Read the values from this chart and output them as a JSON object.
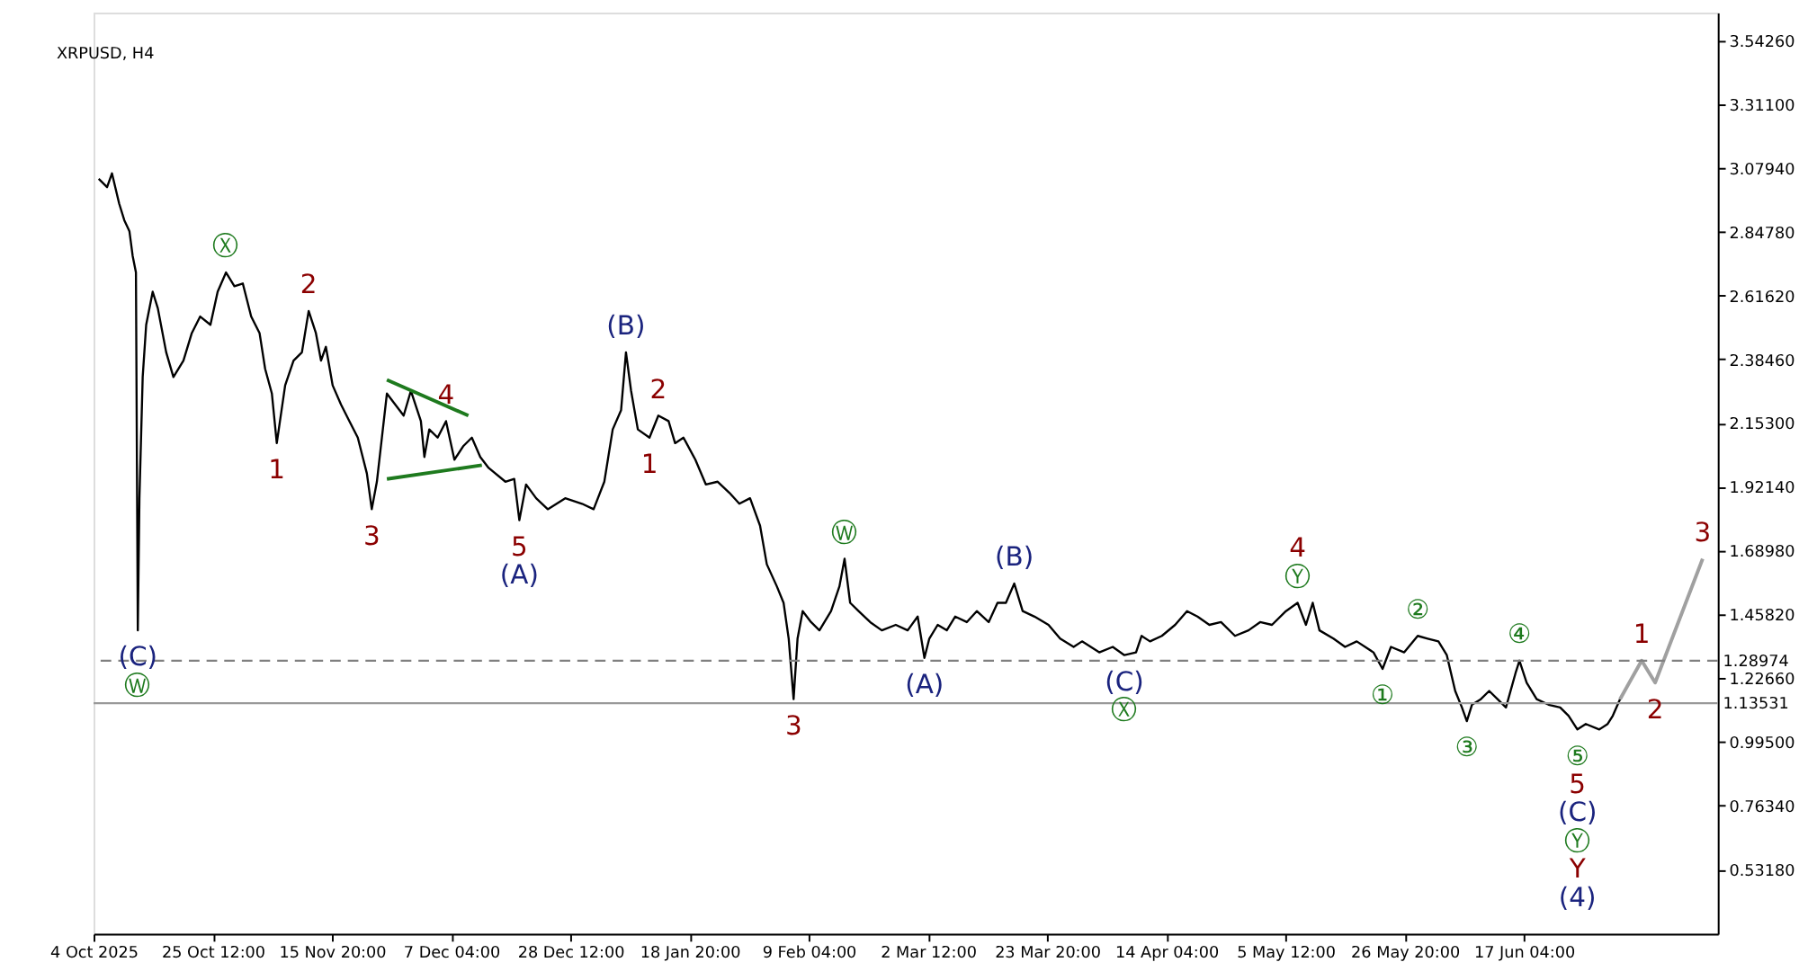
{
  "chart_data": {
    "type": "line",
    "title": "XRPUSD, H4",
    "xlim": [
      "2025-10-04T04:00",
      "2026-07-21T21:00"
    ],
    "ylim": [
      0.298,
      3.644
    ],
    "xticks": [
      {
        "value": "2025-10-04T04:00",
        "label": "4 Oct 2025"
      },
      {
        "value": "2025-10-25T12:00",
        "label": "25 Oct 12:00"
      },
      {
        "value": "2025-11-15T20:00",
        "label": "15 Nov 20:00"
      },
      {
        "value": "2025-12-07T04:00",
        "label": "7 Dec 04:00"
      },
      {
        "value": "2025-12-28T12:00",
        "label": "28 Dec 12:00"
      },
      {
        "value": "2026-01-18T20:00",
        "label": "18 Jan 20:00"
      },
      {
        "value": "2026-02-09T04:00",
        "label": "9 Feb 04:00"
      },
      {
        "value": "2026-03-02T12:00",
        "label": "2 Mar 12:00"
      },
      {
        "value": "2026-03-23T20:00",
        "label": "23 Mar 20:00"
      },
      {
        "value": "2026-04-14T04:00",
        "label": "14 Apr 04:00"
      },
      {
        "value": "2026-05-05T12:00",
        "label": "5 May 12:00"
      },
      {
        "value": "2026-05-26T20:00",
        "label": "26 May 20:00"
      },
      {
        "value": "2026-06-17T04:00",
        "label": "17 Jun 04:00"
      }
    ],
    "yticks": [
      {
        "value": 3.5426,
        "label": "3.54260"
      },
      {
        "value": 3.311,
        "label": "3.31100"
      },
      {
        "value": 3.0794,
        "label": "3.07940"
      },
      {
        "value": 2.8478,
        "label": "2.84780"
      },
      {
        "value": 2.6162,
        "label": "2.61620"
      },
      {
        "value": 2.3846,
        "label": "2.38460"
      },
      {
        "value": 2.153,
        "label": "2.15300"
      },
      {
        "value": 1.9214,
        "label": "1.92140"
      },
      {
        "value": 1.6898,
        "label": "1.68980"
      },
      {
        "value": 1.4582,
        "label": "1.45820"
      },
      {
        "value": 1.2266,
        "label": "1.22660"
      },
      {
        "value": 0.995,
        "label": "0.99500"
      },
      {
        "value": 0.7634,
        "label": "0.76340"
      },
      {
        "value": 0.5318,
        "label": "0.53180"
      }
    ],
    "grid": false,
    "marker": "none",
    "line_style": "solid",
    "series": [
      {
        "color": "#000000",
        "x": [
          "2025-10-05T02:00",
          "2025-10-06T14:00",
          "2025-10-07T11:00",
          "2025-10-08T18:00",
          "2025-10-09T16:00",
          "2025-10-10T14:00",
          "2025-10-11T04:00",
          "2025-10-11T18:00",
          "2025-10-12T02:00",
          "2025-10-12T09:00",
          "2025-10-12T23:00",
          "2025-10-13T14:00",
          "2025-10-14T18:00",
          "2025-10-15T16:00",
          "2025-10-17T04:00",
          "2025-10-18T11:00",
          "2025-10-20T06:00",
          "2025-10-21T18:00",
          "2025-10-23T06:00",
          "2025-10-25T02:00",
          "2025-10-26T09:00",
          "2025-10-27T21:00",
          "2025-10-29T09:00",
          "2025-10-30T21:00",
          "2025-11-01T09:00",
          "2025-11-02T21:00",
          "2025-11-03T21:00",
          "2025-11-05T02:00",
          "2025-11-05T23:00",
          "2025-11-07T11:00",
          "2025-11-08T23:00",
          "2025-11-10T11:00",
          "2025-11-11T16:00",
          "2025-11-12T23:00",
          "2025-11-13T21:00",
          "2025-11-14T18:00",
          "2025-11-15T23:00",
          "2025-11-17T11:00",
          "2025-11-18T23:00",
          "2025-11-20T11:00",
          "2025-11-22T02:00",
          "2025-11-22T23:00",
          "2025-11-23T21:00",
          "2025-11-25T16:00",
          "2025-11-27T04:00",
          "2025-11-28T16:00",
          "2025-11-29T23:00",
          "2025-12-01T18:00",
          "2025-12-02T09:00",
          "2025-12-03T06:00",
          "2025-12-04T18:00",
          "2025-12-06T06:00",
          "2025-12-07T18:00",
          "2025-12-09T09:00",
          "2025-12-10T21:00",
          "2025-12-12T09:00",
          "2025-12-13T21:00",
          "2025-12-16T21:00",
          "2025-12-18T11:00",
          "2025-12-19T09:00",
          "2025-12-20T14:00",
          "2025-12-22T09:00",
          "2025-12-24T11:00",
          "2025-12-27T14:00",
          "2025-12-30T14:00",
          "2026-01-01T16:00",
          "2026-01-03T14:00",
          "2026-01-05T02:00",
          "2026-01-06T14:00",
          "2026-01-07T11:00",
          "2026-01-08T09:00",
          "2026-01-09T14:00",
          "2026-01-11T16:00",
          "2026-01-13T06:00",
          "2026-01-15T02:00",
          "2026-01-16T06:00",
          "2026-01-17T18:00",
          "2026-01-19T21:00",
          "2026-01-21T18:00",
          "2026-01-23T21:00",
          "2026-01-25T23:00",
          "2026-01-27T18:00",
          "2026-01-29T16:00",
          "2026-01-31T11:00",
          "2026-02-01T16:00",
          "2026-02-03T11:00",
          "2026-02-04T16:00",
          "2026-02-05T14:00",
          "2026-02-06T11:00",
          "2026-02-07T04:00",
          "2026-02-08T02:00",
          "2026-02-09T14:00",
          "2026-02-11T02:00",
          "2026-02-13T04:00",
          "2026-02-14T16:00",
          "2026-02-15T14:00",
          "2026-02-16T14:00",
          "2026-02-18T02:00",
          "2026-02-20T04:00",
          "2026-02-22T06:00",
          "2026-02-24T18:00",
          "2026-02-26T21:00",
          "2026-02-28T16:00",
          "2026-03-01T21:00",
          "2026-03-02T18:00",
          "2026-03-04T06:00",
          "2026-03-05T21:00",
          "2026-03-07T09:00",
          "2026-03-09T11:00",
          "2026-03-11T06:00",
          "2026-03-13T09:00",
          "2026-03-14T23:00",
          "2026-03-16T11:00",
          "2026-03-17T23:00",
          "2026-03-19T11:00",
          "2026-03-21T14:00",
          "2026-03-24T02:00",
          "2026-03-26T04:00",
          "2026-03-28T14:00",
          "2026-03-30T02:00",
          "2026-04-02T04:00",
          "2026-04-04T14:00",
          "2026-04-06T16:00",
          "2026-04-08T18:00",
          "2026-04-09T18:00",
          "2026-04-11T06:00",
          "2026-04-13T09:00",
          "2026-04-15T18:00",
          "2026-04-17T21:00",
          "2026-04-19T18:00",
          "2026-04-21T21:00",
          "2026-04-23T23:00",
          "2026-04-26T11:00",
          "2026-04-28T21:00",
          "2026-04-30T23:00",
          "2026-05-03T02:00",
          "2026-05-05T14:00",
          "2026-05-07T16:00",
          "2026-05-09T04:00",
          "2026-05-10T09:00",
          "2026-05-11T14:00",
          "2026-05-14T02:00",
          "2026-05-16T04:00",
          "2026-05-18T06:00",
          "2026-05-21T06:00",
          "2026-05-22T21:00",
          "2026-05-24T09:00",
          "2026-05-26T18:00",
          "2026-05-29T04:00",
          "2026-05-30T23:00",
          "2026-06-01T21:00",
          "2026-06-03T09:00",
          "2026-06-04T21:00",
          "2026-06-06T02:00",
          "2026-06-06T23:00",
          "2026-06-07T21:00",
          "2026-06-09T11:00",
          "2026-06-10T23:00",
          "2026-06-12T11:00",
          "2026-06-13T23:00",
          "2026-06-15T18:00",
          "2026-06-16T09:00",
          "2026-06-17T16:00",
          "2026-06-19T11:00",
          "2026-06-21T14:00",
          "2026-06-23T16:00",
          "2026-06-25T04:00",
          "2026-06-26T18:00",
          "2026-06-28T06:00",
          "2026-06-30T16:00",
          "2026-07-02T04:00",
          "2026-07-03T02:00",
          "2026-07-04T09:00"
        ],
        "values": [
          3.04,
          3.01,
          3.06,
          2.95,
          2.89,
          2.85,
          2.76,
          2.7,
          1.4,
          1.88,
          2.32,
          2.51,
          2.63,
          2.57,
          2.41,
          2.32,
          2.38,
          2.48,
          2.54,
          2.51,
          2.63,
          2.7,
          2.65,
          2.66,
          2.54,
          2.48,
          2.35,
          2.26,
          2.08,
          2.29,
          2.38,
          2.41,
          2.56,
          2.48,
          2.38,
          2.43,
          2.29,
          2.22,
          2.16,
          2.1,
          1.97,
          1.84,
          1.94,
          2.26,
          2.22,
          2.18,
          2.27,
          2.16,
          2.03,
          2.13,
          2.1,
          2.16,
          2.02,
          2.07,
          2.1,
          2.03,
          1.99,
          1.94,
          1.95,
          1.8,
          1.93,
          1.88,
          1.84,
          1.88,
          1.86,
          1.84,
          1.94,
          2.13,
          2.2,
          2.41,
          2.27,
          2.13,
          2.1,
          2.18,
          2.16,
          2.08,
          2.1,
          2.02,
          1.93,
          1.94,
          1.9,
          1.86,
          1.88,
          1.78,
          1.64,
          1.56,
          1.5,
          1.37,
          1.15,
          1.37,
          1.47,
          1.43,
          1.4,
          1.47,
          1.56,
          1.66,
          1.5,
          1.47,
          1.43,
          1.4,
          1.42,
          1.4,
          1.45,
          1.3,
          1.37,
          1.42,
          1.4,
          1.45,
          1.43,
          1.47,
          1.43,
          1.5,
          1.5,
          1.57,
          1.47,
          1.45,
          1.42,
          1.37,
          1.34,
          1.36,
          1.32,
          1.34,
          1.31,
          1.32,
          1.38,
          1.36,
          1.38,
          1.42,
          1.47,
          1.45,
          1.42,
          1.43,
          1.38,
          1.4,
          1.43,
          1.42,
          1.47,
          1.5,
          1.42,
          1.5,
          1.4,
          1.37,
          1.34,
          1.36,
          1.32,
          1.26,
          1.34,
          1.32,
          1.38,
          1.37,
          1.36,
          1.31,
          1.18,
          1.12,
          1.07,
          1.13,
          1.15,
          1.18,
          1.15,
          1.12,
          1.25,
          1.29,
          1.21,
          1.15,
          1.13,
          1.12,
          1.09,
          1.04,
          1.06,
          1.04,
          1.06,
          1.09,
          1.15
        ]
      },
      {
        "color": "#a0a0a0",
        "x": [
          "2026-07-04T09:00",
          "2026-07-08T06:00",
          "2026-07-10T16:00",
          "2026-07-19T04:00"
        ],
        "values": [
          1.15,
          1.29,
          1.21,
          1.66
        ]
      },
      {
        "color": "#1e7a1e",
        "x": [
          "2025-11-25T16:00",
          "2025-12-10T06:00"
        ],
        "values": [
          2.31,
          2.18
        ]
      },
      {
        "color": "#1e7a1e",
        "x": [
          "2025-11-25T16:00",
          "2025-12-12T16:00"
        ],
        "values": [
          1.95,
          2.0
        ]
      }
    ],
    "ref_lines": [
      {
        "axis": "y",
        "value": 1.28974,
        "label": "1.28974",
        "color": "#808080",
        "line_style": "dashed"
      },
      {
        "axis": "y",
        "value": 1.13531,
        "label": "1.13531",
        "color": "#999999",
        "line_style": "solid"
      }
    ],
    "annotations": [
      {
        "text": "(C)",
        "x": "2025-10-12T02:00",
        "y": 1.4
      },
      {
        "text": "Ⓦ",
        "x": "2025-10-12T02:00",
        "y": 1.4
      },
      {
        "text": "Ⓧ",
        "x": "2025-10-27T21:00",
        "y": 2.7
      },
      {
        "text": "1",
        "x": "2025-11-05T23:00",
        "y": 2.08
      },
      {
        "text": "2",
        "x": "2025-11-11T16:00",
        "y": 2.56
      },
      {
        "text": "3",
        "x": "2025-11-22T23:00",
        "y": 1.84
      },
      {
        "text": "4",
        "x": "2025-12-06T06:00",
        "y": 2.16
      },
      {
        "text": "5",
        "x": "2025-12-19T09:00",
        "y": 1.8
      },
      {
        "text": "(A)",
        "x": "2025-12-19T09:00",
        "y": 1.8
      },
      {
        "text": "(B)",
        "x": "2026-01-07T11:00",
        "y": 2.41
      },
      {
        "text": "1",
        "x": "2026-01-11T16:00",
        "y": 2.1
      },
      {
        "text": "2",
        "x": "2026-01-13T06:00",
        "y": 2.18
      },
      {
        "text": "3",
        "x": "2026-02-06T11:00",
        "y": 1.15
      },
      {
        "text": "Ⓦ",
        "x": "2026-02-15T14:00",
        "y": 1.66
      },
      {
        "text": "(A)",
        "x": "2026-03-01T21:00",
        "y": 1.3
      },
      {
        "text": "(B)",
        "x": "2026-03-17T23:00",
        "y": 1.57
      },
      {
        "text": "(C)",
        "x": "2026-04-06T16:00",
        "y": 1.31
      },
      {
        "text": "Ⓧ",
        "x": "2026-04-06T16:00",
        "y": 1.31
      },
      {
        "text": "Ⓨ",
        "x": "2026-05-07T16:00",
        "y": 1.5
      },
      {
        "text": "4",
        "x": "2026-05-07T16:00",
        "y": 1.5
      },
      {
        "text": "①",
        "x": "2026-05-22T21:00",
        "y": 1.26
      },
      {
        "text": "②",
        "x": "2026-05-29T04:00",
        "y": 1.38
      },
      {
        "text": "③",
        "x": "2026-06-06T23:00",
        "y": 1.07
      },
      {
        "text": "④",
        "x": "2026-06-16T09:00",
        "y": 1.29
      },
      {
        "text": "⑤",
        "x": "2026-06-26T18:00",
        "y": 1.04
      },
      {
        "text": "5",
        "x": "2026-06-26T18:00",
        "y": 1.04
      },
      {
        "text": "(C)",
        "x": "2026-06-26T18:00",
        "y": 1.04
      },
      "Ⓨ",
      "Y",
      "(4)",
      {
        "text": "1",
        "x": "2026-07-08T06:00",
        "y": 1.29
      },
      {
        "text": "2",
        "x": "2026-07-10T16:00",
        "y": 1.21
      },
      {
        "text": "3",
        "x": "2026-07-19T04:00",
        "y": 1.66
      }
    ]
  }
}
